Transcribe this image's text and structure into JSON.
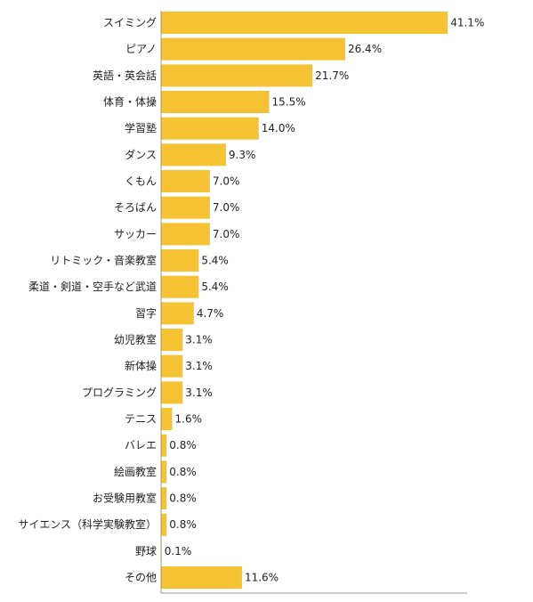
{
  "chart_data": {
    "type": "bar",
    "orientation": "horizontal",
    "title": "",
    "xlabel": "",
    "ylabel": "",
    "grid": false,
    "xlim": [
      0,
      50
    ],
    "bar_color": "#f4c232",
    "axis_color": "#999999",
    "categories": [
      "スイミング",
      "ピアノ",
      "英語・英会話",
      "体育・体操",
      "学習塾",
      "ダンス",
      "くもん",
      "そろばん",
      "サッカー",
      "リトミック・音楽教室",
      "柔道・剣道・空手など武道",
      "習字",
      "幼児教室",
      "新体操",
      "プログラミング",
      "テニス",
      "バレエ",
      "絵画教室",
      "お受験用教室",
      "サイエンス（科学実験教室）",
      "野球",
      "その他"
    ],
    "values": [
      41.1,
      26.4,
      21.7,
      15.5,
      14.0,
      9.3,
      7.0,
      7.0,
      7.0,
      5.4,
      5.4,
      4.7,
      3.1,
      3.1,
      3.1,
      1.6,
      0.8,
      0.8,
      0.8,
      0.8,
      0.1,
      11.6
    ],
    "value_labels": [
      "41.1%",
      "26.4%",
      "21.7%",
      "15.5%",
      "14.0%",
      "9.3%",
      "7.0%",
      "7.0%",
      "7.0%",
      "5.4%",
      "5.4%",
      "4.7%",
      "3.1%",
      "3.1%",
      "3.1%",
      "1.6%",
      "0.8%",
      "0.8%",
      "0.8%",
      "0.8%",
      "0.1%",
      "11.6%"
    ]
  }
}
